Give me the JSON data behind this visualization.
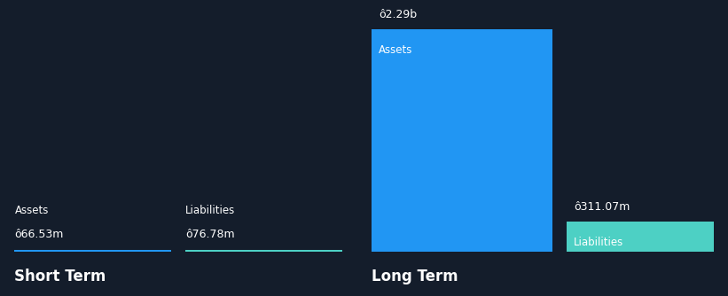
{
  "background_color": "#141d2b",
  "short_term": {
    "assets_value": 66.53,
    "liabilities_value": 76.78,
    "assets_label": "Assets",
    "liabilities_label": "Liabilities",
    "assets_value_str": "ô66.53m",
    "liabilities_value_str": "ô76.78m",
    "section_label": "Short Term"
  },
  "long_term": {
    "assets_value": 2290,
    "liabilities_value": 311.07,
    "assets_label": "Assets",
    "liabilities_label": "Liabilities",
    "assets_value_str": "ô2.29b",
    "liabilities_value_str": "ô311.07m",
    "section_label": "Long Term"
  },
  "asset_color": "#2196f3",
  "liability_color": "#4dd0c4",
  "text_color": "#ffffff",
  "label_color": "#cccccc",
  "section_label_color": "#ffffff",
  "value_label_fontsize": 9,
  "bar_label_fontsize": 8.5,
  "section_fontsize": 12
}
